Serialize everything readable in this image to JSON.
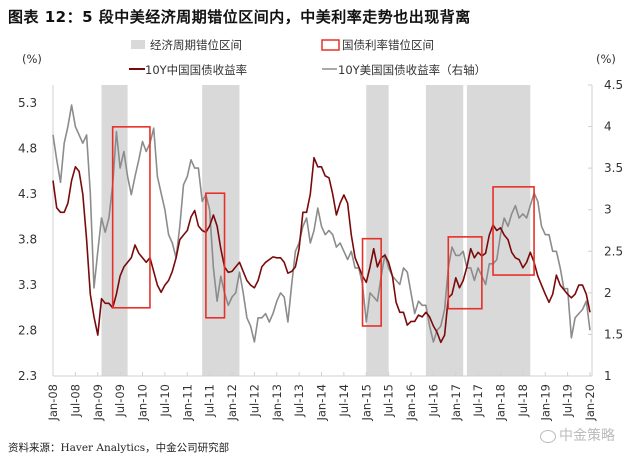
{
  "title": "图表 12：5 段中美经济周期错位区间内，中美利率走势也出现背离",
  "source": "资料来源：Haver Analytics，中金公司研究部",
  "watermark": "中金策略",
  "chart_data": {
    "type": "line",
    "left_unit": "(%)",
    "right_unit": "(%)",
    "left_ylim": [
      2.3,
      5.5
    ],
    "left_ticks": [
      "2.3",
      "2.8",
      "3.3",
      "3.8",
      "4.3",
      "4.8",
      "5.3"
    ],
    "right_ylim": [
      1,
      4.5
    ],
    "right_ticks": [
      "1",
      "1.5",
      "2",
      "2.5",
      "3",
      "3.5",
      "4",
      "4.5"
    ],
    "x_range": [
      "2008-01",
      "2020-01"
    ],
    "x_ticks": [
      "Jan-08",
      "Jul-08",
      "Jan-09",
      "Jul-09",
      "Jan-10",
      "Jul-10",
      "Jan-11",
      "Jul-11",
      "Jan-12",
      "Jul-12",
      "Jan-13",
      "Jul-13",
      "Jan-14",
      "Jul-14",
      "Jan-15",
      "Jul-15",
      "Jan-16",
      "Jul-16",
      "Jan-17",
      "Jul-17",
      "Jan-18",
      "Jul-18",
      "Jan-19",
      "Jul-19",
      "Jan-20"
    ],
    "legend": {
      "shade": "经济周期错位区间",
      "box": "国债利率错位区间",
      "china": "10Y中国国债收益率",
      "us": "10Y美国国债收益率（右轴）"
    },
    "colors": {
      "shade": "#d9d9d9",
      "box": "#e8302a",
      "china": "#7a0a0a",
      "us": "#8c8c8c"
    },
    "shaded_periods": [
      {
        "start": "2009-02",
        "end": "2009-09"
      },
      {
        "start": "2011-05",
        "end": "2012-03"
      },
      {
        "start": "2015-01",
        "end": "2015-07"
      },
      {
        "start": "2016-05",
        "end": "2017-03"
      },
      {
        "start": "2017-04",
        "end": "2018-09"
      }
    ],
    "divergence_boxes": [
      {
        "start": "2009-05",
        "end": "2010-03",
        "low": 3.05,
        "high": 5.04
      },
      {
        "start": "2011-06",
        "end": "2011-11",
        "low": 2.94,
        "high": 4.31
      },
      {
        "start": "2014-12",
        "end": "2015-05",
        "low": 2.85,
        "high": 3.81
      },
      {
        "start": "2016-11",
        "end": "2017-08",
        "low": 3.04,
        "high": 3.83
      },
      {
        "start": "2017-11",
        "end": "2018-10",
        "low": 3.41,
        "high": 4.38
      }
    ],
    "series": [
      {
        "name": "10Y中国国债收益率",
        "axis": "left",
        "monthly_by_year": {
          "2008": [
            4.45,
            4.15,
            4.1,
            4.1,
            4.2,
            4.45,
            4.6,
            4.55,
            4.3,
            3.8,
            3.2,
            2.95
          ],
          "2009": [
            2.75,
            3.15,
            3.1,
            3.1,
            3.05,
            3.2,
            3.4,
            3.5,
            3.55,
            3.6,
            3.74,
            3.65
          ],
          "2010": [
            3.6,
            3.55,
            3.6,
            3.45,
            3.3,
            3.22,
            3.3,
            3.35,
            3.45,
            3.6,
            3.8,
            3.85
          ],
          "2011": [
            3.9,
            4.05,
            4.12,
            3.95,
            3.9,
            3.88,
            3.95,
            4.07,
            3.95,
            3.7,
            3.5,
            3.44
          ],
          "2012": [
            3.45,
            3.5,
            3.55,
            3.45,
            3.35,
            3.3,
            3.27,
            3.35,
            3.5,
            3.55,
            3.58,
            3.61
          ],
          "2013": [
            3.6,
            3.6,
            3.55,
            3.43,
            3.45,
            3.5,
            3.7,
            4.1,
            4.1,
            4.3,
            4.7,
            4.6
          ],
          "2014": [
            4.6,
            4.5,
            4.48,
            4.3,
            4.07,
            4.2,
            4.29,
            4.2,
            3.85,
            3.6,
            3.5,
            3.4
          ],
          "2015": [
            3.33,
            3.5,
            3.7,
            3.5,
            3.6,
            3.63,
            3.55,
            3.4,
            3.11,
            3.0,
            3.0,
            2.86
          ],
          "2016": [
            2.9,
            2.9,
            2.97,
            2.95,
            3.0,
            2.95,
            2.85,
            2.78,
            2.67,
            2.75,
            3.16,
            3.2
          ],
          "2017": [
            3.38,
            3.27,
            3.35,
            3.5,
            3.7,
            3.6,
            3.66,
            3.62,
            3.65,
            3.85,
            3.96,
            3.9
          ],
          "2018": [
            3.93,
            3.85,
            3.8,
            3.66,
            3.6,
            3.58,
            3.49,
            3.55,
            3.66,
            3.55,
            3.4,
            3.3
          ],
          "2019": [
            3.2,
            3.11,
            3.2,
            3.41,
            3.3,
            3.25,
            3.2,
            3.16,
            3.2,
            3.3,
            3.3,
            3.2
          ],
          "2020": [
            3.0
          ]
        }
      },
      {
        "name": "10Y美国国债收益率（右轴）",
        "axis": "right",
        "monthly_by_year": {
          "2008": [
            3.9,
            3.6,
            3.33,
            3.8,
            4.0,
            4.26,
            4.0,
            3.9,
            3.8,
            3.9,
            3.2,
            2.06
          ],
          "2009": [
            2.5,
            2.9,
            2.73,
            2.9,
            3.3,
            3.94,
            3.5,
            3.7,
            3.4,
            3.18,
            3.4,
            3.6
          ],
          "2010": [
            3.82,
            3.7,
            3.8,
            3.98,
            3.4,
            3.2,
            3.0,
            2.7,
            2.6,
            2.42,
            2.8,
            3.3
          ],
          "2011": [
            3.4,
            3.6,
            3.5,
            3.5,
            3.1,
            3.18,
            3.0,
            2.3,
            1.9,
            2.2,
            2.0,
            1.85
          ],
          "2012": [
            1.95,
            2.0,
            2.25,
            2.0,
            1.7,
            1.6,
            1.41,
            1.7,
            1.7,
            1.75,
            1.65,
            1.75
          ],
          "2013": [
            1.9,
            2.0,
            1.95,
            1.65,
            2.1,
            2.5,
            2.6,
            2.8,
            2.9,
            2.6,
            2.75,
            3.02
          ],
          "2014": [
            2.8,
            2.7,
            2.75,
            2.7,
            2.55,
            2.6,
            2.5,
            2.4,
            2.5,
            2.3,
            2.3,
            2.1
          ],
          "2015": [
            1.65,
            2.0,
            1.95,
            1.9,
            2.2,
            2.46,
            2.3,
            2.2,
            2.15,
            2.1,
            2.3,
            2.25
          ],
          "2016": [
            2.0,
            1.75,
            1.9,
            1.85,
            1.85,
            1.6,
            1.41,
            1.55,
            1.6,
            1.8,
            2.3,
            2.55
          ],
          "2017": [
            2.45,
            2.45,
            2.5,
            2.3,
            2.3,
            2.15,
            2.3,
            2.2,
            2.1,
            2.35,
            2.35,
            2.4
          ],
          "2018": [
            2.7,
            2.9,
            2.8,
            2.95,
            3.05,
            2.9,
            2.95,
            2.9,
            3.05,
            3.2,
            3.1,
            2.8
          ],
          "2019": [
            2.7,
            2.7,
            2.5,
            2.5,
            2.3,
            2.05,
            2.05,
            1.46,
            1.7,
            1.75,
            1.8,
            1.9
          ],
          "2020": [
            1.55
          ]
        }
      }
    ]
  }
}
